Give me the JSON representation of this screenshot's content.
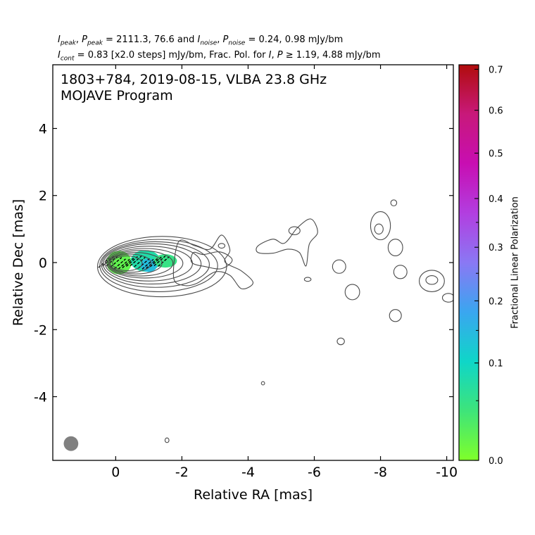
{
  "header": {
    "line1": {
      "i": "I",
      "peak_sub": "peak",
      "p": "P",
      "eq1": " = 2111.3, 76.6 and ",
      "noise_sub": "noise",
      "eq2": " = 0.24, 0.98 mJy/bm"
    },
    "line2": {
      "i": "I",
      "cont_sub": "cont",
      "eq1": " = 0.83 [x2.0 steps] mJy/bm, Frac. Pol. for ",
      "p": "P",
      "eq2": " ≥  1.19, 4.88 mJy/bm"
    }
  },
  "chart_data": {
    "type": "contour",
    "title": "1803+784, 2019-08-15, VLBA 23.8 GHz",
    "subtitle": "MOJAVE Program",
    "xlabel": "Relative RA [mas]",
    "ylabel": "Relative Dec [mas]",
    "xlim": [
      1.9,
      -10.2
    ],
    "ylim": [
      -5.9,
      5.9
    ],
    "xticks": [
      0,
      -2,
      -4,
      -6,
      -8,
      -10
    ],
    "xticklabels": [
      "0",
      "-2",
      "-4",
      "-6",
      "-8",
      "-10"
    ],
    "yticks": [
      4,
      2,
      0,
      -2,
      -4
    ],
    "yticklabels": [
      "4",
      "2",
      "0",
      "-2",
      "-4"
    ],
    "contour_base_mJy": 0.83,
    "contour_step": 2.0,
    "core_contours": [
      {
        "cx": -0.35,
        "cy": -0.02,
        "rx": 0.45,
        "ry": 0.22
      },
      {
        "cx": -0.45,
        "cy": -0.02,
        "rx": 0.62,
        "ry": 0.27
      },
      {
        "cx": -0.6,
        "cy": -0.02,
        "rx": 0.8,
        "ry": 0.32
      },
      {
        "cx": -0.75,
        "cy": -0.02,
        "rx": 0.98,
        "ry": 0.38
      },
      {
        "cx": -0.88,
        "cy": -0.02,
        "rx": 1.15,
        "ry": 0.44
      },
      {
        "cx": -1.0,
        "cy": -0.03,
        "rx": 1.32,
        "ry": 0.52
      },
      {
        "cx": -1.1,
        "cy": -0.04,
        "rx": 1.48,
        "ry": 0.6
      },
      {
        "cx": -1.2,
        "cy": -0.06,
        "rx": 1.63,
        "ry": 0.68
      },
      {
        "cx": -1.3,
        "cy": -0.09,
        "rx": 1.78,
        "ry": 0.78
      },
      {
        "cx": -1.4,
        "cy": -0.12,
        "rx": 1.95,
        "ry": 0.9
      }
    ],
    "jet_contours": [
      [
        [
          -1.9,
          0.62
        ],
        [
          -2.4,
          0.5
        ],
        [
          -2.85,
          0.4
        ],
        [
          -3.2,
          0.82
        ],
        [
          -3.45,
          0.38
        ],
        [
          -3.3,
          0.02
        ],
        [
          -3.8,
          -0.25
        ],
        [
          -4.15,
          -0.6
        ],
        [
          -3.8,
          -0.78
        ],
        [
          -3.45,
          -0.38
        ],
        [
          -3.0,
          -0.28
        ],
        [
          -2.45,
          -0.62
        ],
        [
          -2.05,
          -0.68
        ],
        [
          -1.75,
          -0.44
        ]
      ],
      [
        [
          -2.35,
          0.3
        ],
        [
          -2.65,
          0.24
        ],
        [
          -3.15,
          0.32
        ],
        [
          -3.52,
          0.08
        ],
        [
          -3.2,
          -0.18
        ],
        [
          -2.7,
          -0.12
        ],
        [
          -2.3,
          0.0
        ]
      ],
      [
        [
          -4.3,
          0.5
        ],
        [
          -4.75,
          0.7
        ],
        [
          -5.1,
          0.58
        ],
        [
          -5.5,
          1.05
        ],
        [
          -5.9,
          1.3
        ],
        [
          -6.1,
          0.9
        ],
        [
          -5.85,
          0.55
        ],
        [
          -5.75,
          -0.1
        ],
        [
          -5.55,
          0.3
        ],
        [
          -5.2,
          0.4
        ],
        [
          -4.75,
          0.28
        ],
        [
          -4.3,
          0.3
        ]
      ]
    ],
    "blobs": [
      {
        "cx": -3.2,
        "cy": 0.5,
        "rx": 0.1,
        "ry": 0.07
      },
      {
        "cx": -5.4,
        "cy": 0.95,
        "rx": 0.17,
        "ry": 0.12
      },
      {
        "cx": -5.8,
        "cy": -0.5,
        "rx": 0.1,
        "ry": 0.06
      },
      {
        "cx": -6.75,
        "cy": -0.12,
        "rx": 0.2,
        "ry": 0.2
      },
      {
        "cx": -7.15,
        "cy": -0.88,
        "rx": 0.22,
        "ry": 0.23
      },
      {
        "cx": -6.8,
        "cy": -2.35,
        "rx": 0.11,
        "ry": 0.1
      },
      {
        "cx": -8.0,
        "cy": 1.1,
        "rx": 0.3,
        "ry": 0.42
      },
      {
        "cx": -7.95,
        "cy": 1.0,
        "rx": 0.13,
        "ry": 0.15
      },
      {
        "cx": -8.45,
        "cy": 0.45,
        "rx": 0.22,
        "ry": 0.25
      },
      {
        "cx": -8.4,
        "cy": 1.78,
        "rx": 0.09,
        "ry": 0.09
      },
      {
        "cx": -8.6,
        "cy": -0.28,
        "rx": 0.2,
        "ry": 0.2
      },
      {
        "cx": -8.45,
        "cy": -1.58,
        "rx": 0.18,
        "ry": 0.18
      },
      {
        "cx": -9.55,
        "cy": -0.55,
        "rx": 0.38,
        "ry": 0.32
      },
      {
        "cx": -9.55,
        "cy": -0.52,
        "rx": 0.18,
        "ry": 0.13
      },
      {
        "cx": -10.05,
        "cy": -1.05,
        "rx": 0.18,
        "ry": 0.13
      },
      {
        "cx": -4.45,
        "cy": -3.6,
        "rx": 0.05,
        "ry": 0.05
      },
      {
        "cx": -1.55,
        "cy": -5.3,
        "rx": 0.06,
        "ry": 0.07
      }
    ],
    "beam": {
      "cx": 1.35,
      "cy": -5.4,
      "rx": 0.22,
      "ry": 0.22,
      "fill": "#808080"
    },
    "frac_pol_region": [
      {
        "cx": -0.1,
        "cy": 0.0,
        "rx": 0.38,
        "ry": 0.35,
        "value": 0.04
      },
      {
        "cx": -0.9,
        "cy": 0.05,
        "rx": 0.45,
        "ry": 0.32,
        "value": 0.14
      },
      {
        "cx": -1.0,
        "cy": -0.08,
        "rx": 0.25,
        "ry": 0.2,
        "value": 0.22
      },
      {
        "cx": -1.5,
        "cy": 0.05,
        "rx": 0.35,
        "ry": 0.2,
        "value": 0.1
      }
    ],
    "colorbar": {
      "label": "Fractional Linear Polarization",
      "ticks": [
        0.0,
        0.1,
        0.2,
        0.3,
        0.4,
        0.5,
        0.6,
        0.7
      ],
      "ticklabels": [
        "0.0",
        "0.1",
        "0.2",
        "0.3",
        "0.4",
        "0.5",
        "0.6",
        "0.7"
      ],
      "minor_ticks": [
        0.05,
        0.15,
        0.25,
        0.35
      ],
      "colors": [
        "#7fff2a",
        "#3ee47a",
        "#0fd6c8",
        "#3aa6f0",
        "#8a78f4",
        "#b23ee0",
        "#c80eb2",
        "#c8197a",
        "#b00c0c"
      ]
    },
    "contour_color": "#4a4a4a"
  }
}
